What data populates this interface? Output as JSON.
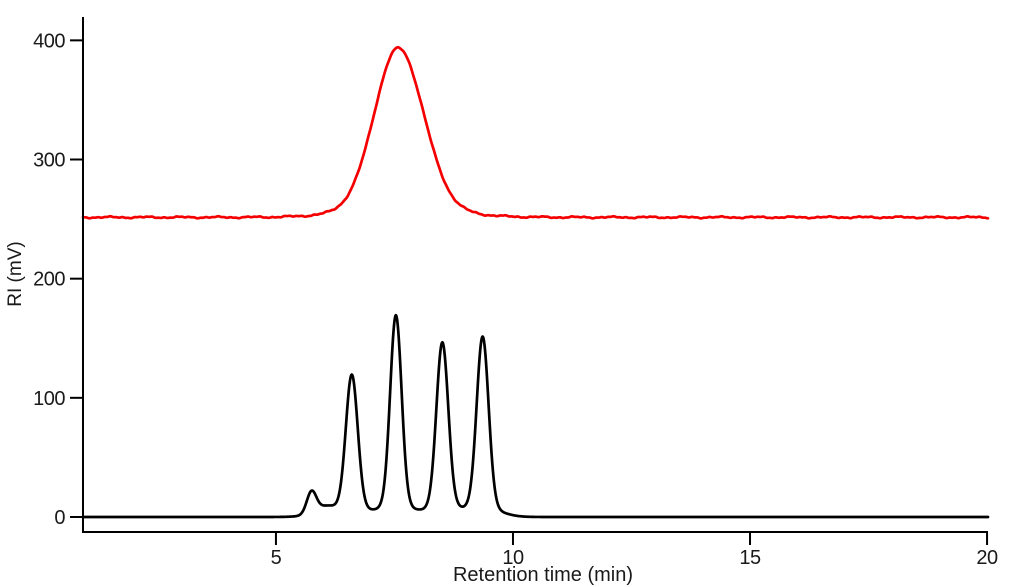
{
  "figure": {
    "background_color": "#ffffff",
    "axis_color": "#000000"
  },
  "chart_data": {
    "type": "line",
    "title": "",
    "xlabel": "Retention time (min)",
    "ylabel": "RI (mV)",
    "xlim": [
      0.93,
      20.02
    ],
    "ylim": [
      -12.6,
      419.6
    ],
    "x_ticks": [
      5,
      10,
      15,
      20
    ],
    "y_ticks": [
      0,
      100,
      200,
      300,
      400
    ],
    "grid": false,
    "legend": "none",
    "series": [
      {
        "name": "red-trace",
        "description": "upper chromatogram trace, red, broad single peak",
        "color": "#f40000",
        "line_width": 2.7,
        "baseline_mV": 251.5,
        "noise_amp_mV": 0.9,
        "apex": {
          "retention_min": 7.58,
          "value_mV": 393
        },
        "peaks": [
          {
            "center_min": 7.58,
            "height_mV": 142,
            "sigma_left_min": 0.5,
            "sigma_right_min": 0.53,
            "base_fraction": 0.06,
            "base_sigma_scale": 2.0
          }
        ]
      },
      {
        "name": "black-trace",
        "description": "lower chromatogram trace, black, five resolved peaks",
        "color": "#000000",
        "line_width": 2.7,
        "baseline_mV": 0,
        "noise_amp_mV": 0,
        "apexes": [
          {
            "retention_min": 5.75,
            "value_mV": 22
          },
          {
            "retention_min": 6.6,
            "value_mV": 119
          },
          {
            "retention_min": 7.53,
            "value_mV": 169
          },
          {
            "retention_min": 8.51,
            "value_mV": 146
          },
          {
            "retention_min": 9.36,
            "value_mV": 151
          }
        ],
        "peaks": [
          {
            "center_min": 5.75,
            "height_mV": 19,
            "sigma_min": 0.1,
            "base_fraction": 0.05,
            "base_sigma_scale": 2.8
          },
          {
            "center_min": 6.05,
            "height_mV": 7,
            "sigma_min": 0.22,
            "base_fraction": 0,
            "base_sigma_scale": 1
          },
          {
            "center_min": 6.6,
            "height_mV": 119,
            "sigma_min": 0.125,
            "base_fraction": 0.055,
            "base_sigma_scale": 2.8
          },
          {
            "center_min": 7.53,
            "height_mV": 169,
            "sigma_min": 0.12,
            "base_fraction": 0.055,
            "base_sigma_scale": 2.8
          },
          {
            "center_min": 8.51,
            "height_mV": 146,
            "sigma_min": 0.125,
            "base_fraction": 0.055,
            "base_sigma_scale": 2.8
          },
          {
            "center_min": 9.36,
            "height_mV": 151,
            "sigma_min": 0.125,
            "base_fraction": 0.055,
            "base_sigma_scale": 2.8
          }
        ]
      }
    ]
  }
}
